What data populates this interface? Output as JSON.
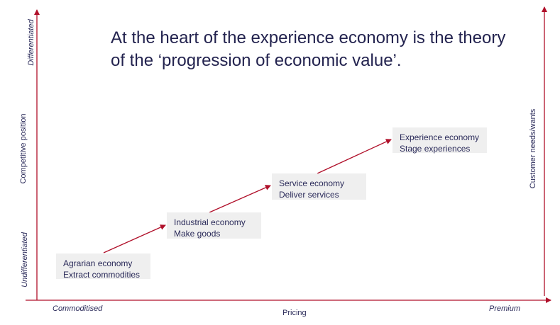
{
  "title": "At the heart of the experience economy is the theory of the ‘progression of economic value’.",
  "y_axis": {
    "label": "Competitive position",
    "top": "Differentiated",
    "bottom": "Undifferentiated"
  },
  "y2_axis": {
    "label": "Customer needs/wants"
  },
  "x_axis": {
    "label": "Pricing",
    "left": "Commoditised",
    "right": "Premium"
  },
  "stages": [
    {
      "name": "Agrarian economy",
      "action": "Extract commodities"
    },
    {
      "name": "Industrial economy",
      "action": "Make goods"
    },
    {
      "name": "Service economy",
      "action": "Deliver services"
    },
    {
      "name": "Experience economy",
      "action": "Stage experiences"
    }
  ],
  "colors": {
    "axis": "#b0102a",
    "box": "#efefef",
    "text": "#23234f"
  }
}
